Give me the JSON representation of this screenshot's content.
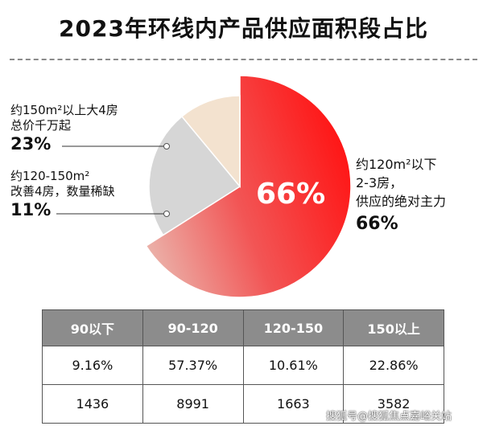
{
  "title": "2023年环线内产品供应面积段占比",
  "chart_data": {
    "type": "pie",
    "slices": [
      {
        "label_lines": [
          "约120m²以下",
          "2-3房，",
          "供应的绝对主力"
        ],
        "value": 66,
        "value_label": "66%",
        "inner_label": "66%",
        "color_start": "#ff1a1a",
        "color_end": "#eaa6a0"
      },
      {
        "label_lines": [
          "约150m²以上大4房",
          "总价千万起"
        ],
        "value": 23,
        "value_label": "23%",
        "color_start": "#d6d6d6",
        "color_end": "#d6d6d6"
      },
      {
        "label_lines": [
          "约120-150m²",
          "改善4房，数量稀缺"
        ],
        "value": 11,
        "value_label": "11%",
        "color_start": "#f3e2cf",
        "color_end": "#f3e2cf"
      }
    ]
  },
  "table": {
    "headers": [
      "90以下",
      "90-120",
      "120-150",
      "150以上"
    ],
    "rows": [
      [
        "9.16%",
        "57.37%",
        "10.61%",
        "22.86%"
      ],
      [
        "1436",
        "8991",
        "1663",
        "3582"
      ]
    ]
  },
  "watermark": "搜狐号@搜狐焦点嘉峪关站"
}
